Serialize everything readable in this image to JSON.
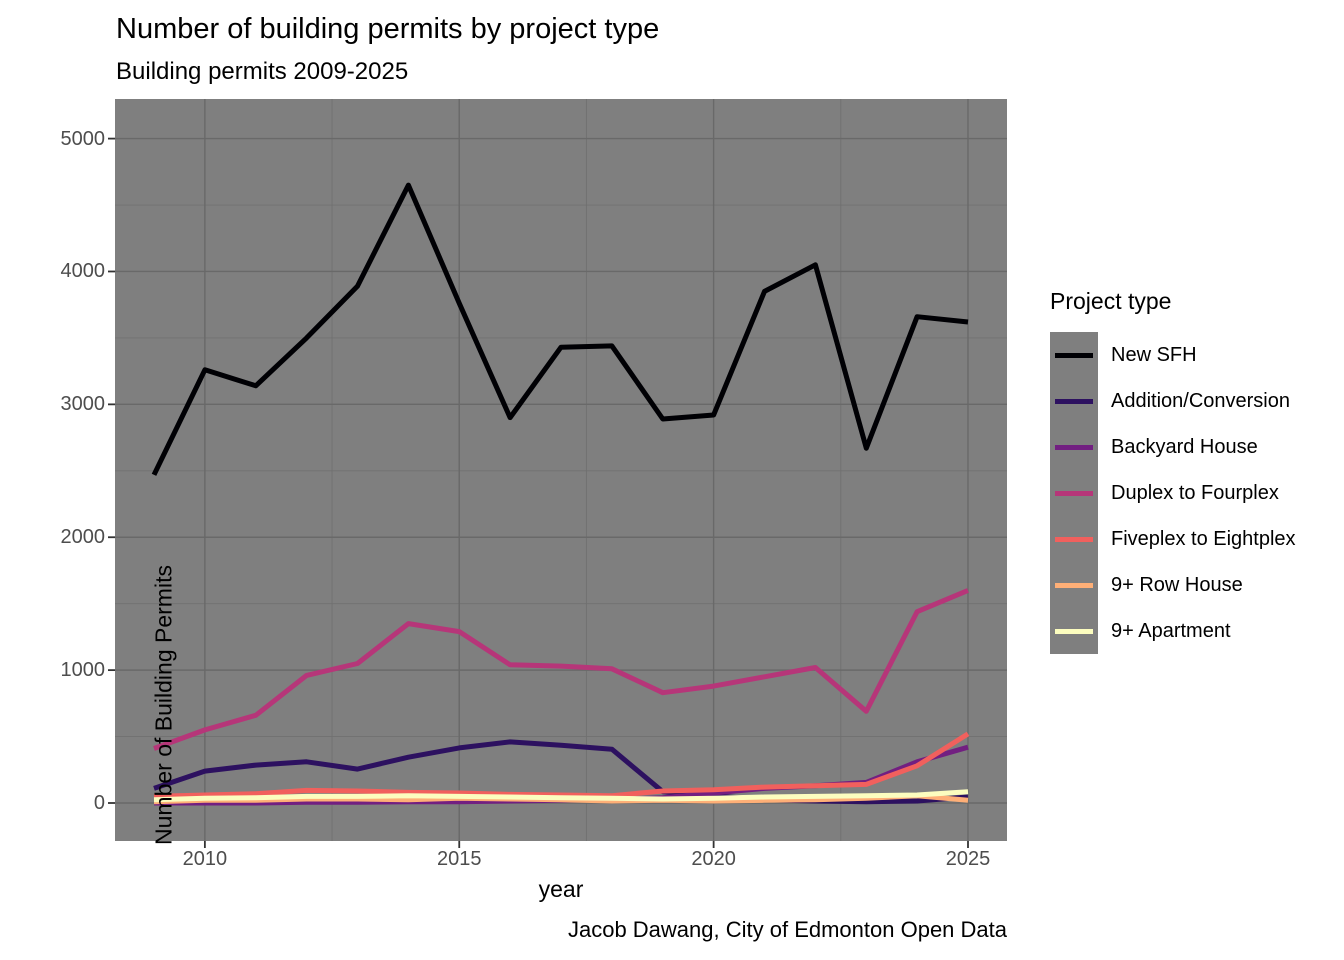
{
  "chart_data": {
    "type": "line",
    "title": "Number of building permits by project type",
    "subtitle": "Building permits 2009-2025",
    "caption": "Jacob Dawang, City of Edmonton Open Data",
    "xlabel": "year",
    "ylabel": "Number of Building Permits",
    "legend_title": "Project type",
    "legend_position": "right",
    "panel_bg": "#7F7F7F",
    "grid_major_color": "#696969",
    "grid_minor_color": "#707070",
    "tick_label_color": "#4D4D4D",
    "tick_mark_color": "#333333",
    "x": [
      2009,
      2010,
      2011,
      2012,
      2013,
      2014,
      2015,
      2016,
      2017,
      2018,
      2019,
      2020,
      2021,
      2022,
      2023,
      2024,
      2025
    ],
    "x_ticks": [
      2010,
      2015,
      2020,
      2025
    ],
    "y_ticks": [
      0,
      1000,
      2000,
      3000,
      4000,
      5000
    ],
    "x_minor_ticks": [
      2012.5,
      2017.5,
      2022.5
    ],
    "y_minor_ticks": [
      500,
      1500,
      2500,
      3500,
      4500
    ],
    "ylim": [
      0,
      5000
    ],
    "series": [
      {
        "name": "New SFH",
        "color": "#000004",
        "values": [
          2470,
          3260,
          3140,
          3500,
          3890,
          4650,
          3760,
          2900,
          3430,
          3440,
          2890,
          2920,
          3850,
          4050,
          2670,
          3660,
          3620
        ]
      },
      {
        "name": "Addition/Conversion",
        "color": "#2D1160",
        "values": [
          110,
          240,
          285,
          310,
          255,
          345,
          415,
          460,
          435,
          405,
          85,
          55,
          25,
          15,
          10,
          15,
          45
        ]
      },
      {
        "name": "Backyard House",
        "color": "#721F81",
        "values": [
          0,
          0,
          0,
          5,
          5,
          10,
          10,
          15,
          20,
          25,
          40,
          75,
          110,
          130,
          155,
          310,
          420
        ]
      },
      {
        "name": "Duplex to Fourplex",
        "color": "#B63679",
        "values": [
          410,
          550,
          660,
          960,
          1050,
          1350,
          1290,
          1040,
          1030,
          1010,
          830,
          880,
          950,
          1020,
          690,
          1440,
          1600
        ]
      },
      {
        "name": "Fiveplex to Eightplex",
        "color": "#F1605D",
        "values": [
          50,
          60,
          70,
          95,
          90,
          80,
          75,
          65,
          60,
          55,
          90,
          100,
          120,
          130,
          140,
          280,
          520
        ]
      },
      {
        "name": "9+ Row House",
        "color": "#FEAF77",
        "values": [
          10,
          20,
          20,
          30,
          30,
          25,
          35,
          30,
          25,
          15,
          20,
          15,
          20,
          25,
          35,
          55,
          20
        ]
      },
      {
        "name": "9+ Apartment",
        "color": "#FCFDBF",
        "values": [
          25,
          35,
          40,
          50,
          50,
          55,
          50,
          45,
          40,
          35,
          30,
          35,
          45,
          50,
          55,
          60,
          85
        ]
      }
    ]
  }
}
